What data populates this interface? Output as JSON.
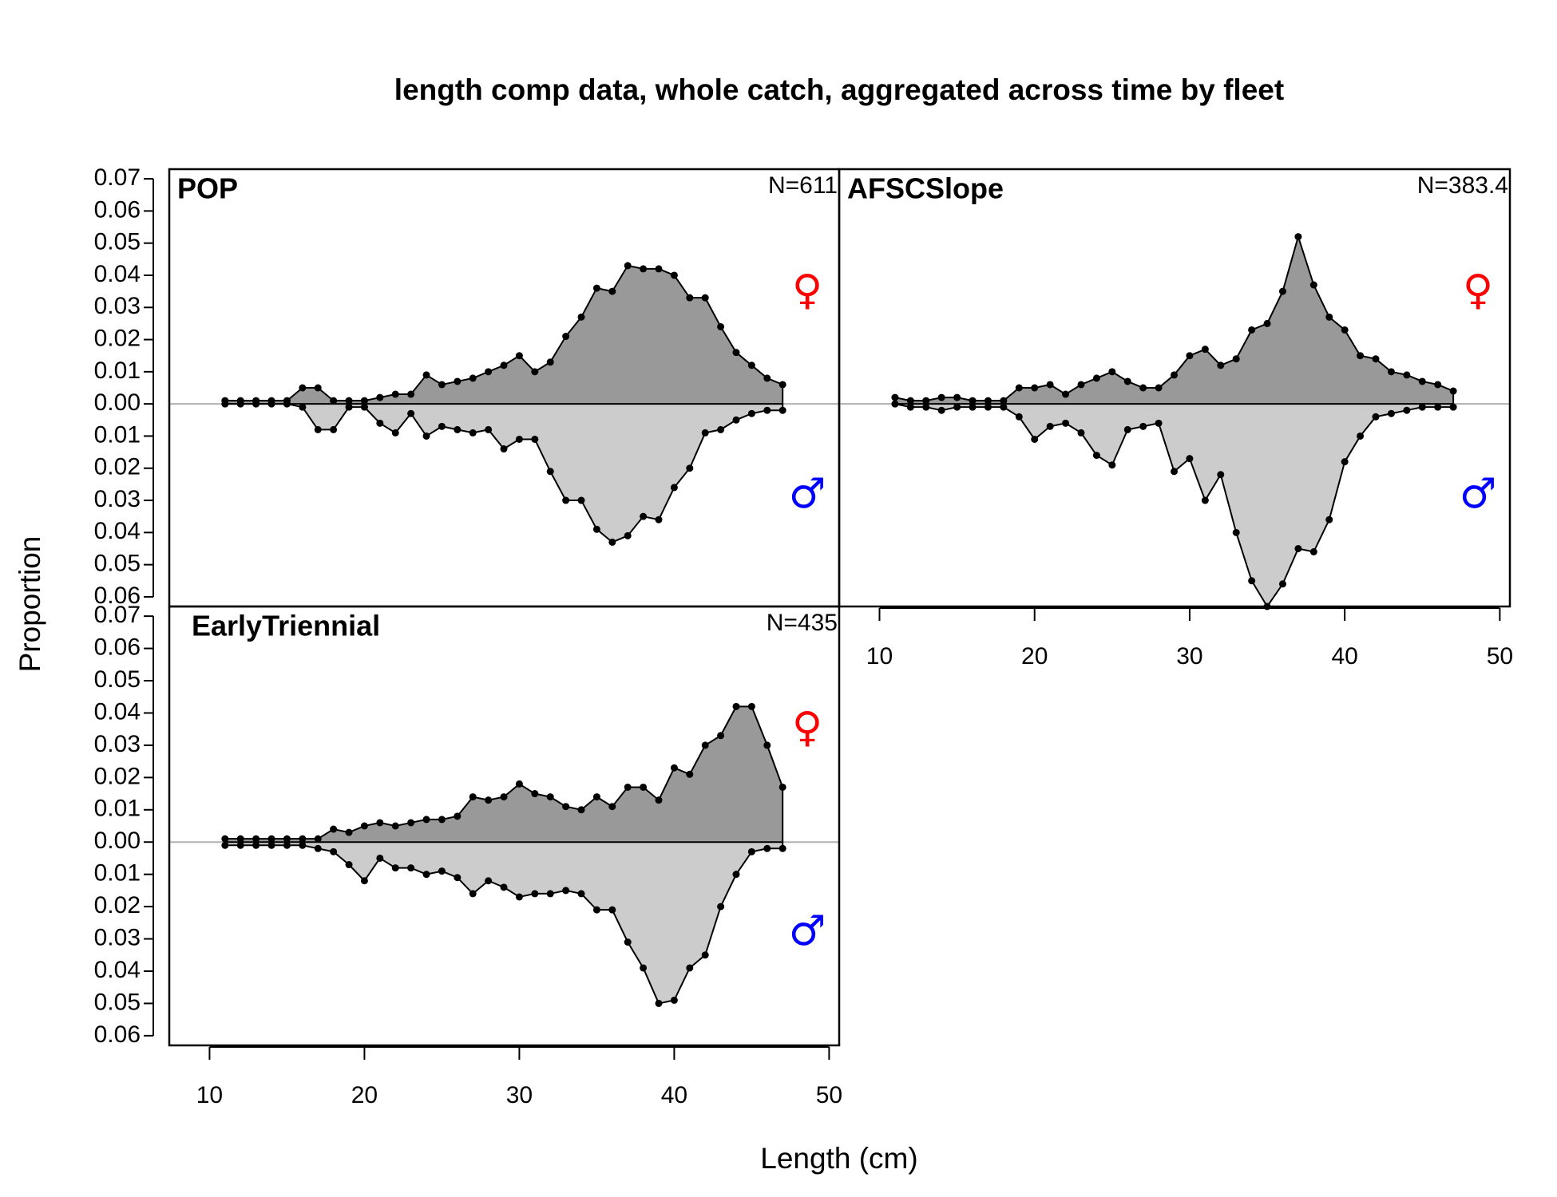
{
  "chart_data": {
    "type": "area",
    "title": "length comp data, whole catch, aggregated across time by fleet",
    "x_label": "Length (cm)",
    "y_label": "Proportion",
    "x": [
      11,
      12,
      13,
      14,
      15,
      16,
      17,
      18,
      19,
      20,
      21,
      22,
      23,
      24,
      25,
      26,
      27,
      28,
      29,
      30,
      31,
      32,
      33,
      34,
      35,
      36,
      37,
      38,
      39,
      40,
      41,
      42,
      43,
      44,
      45,
      46,
      47
    ],
    "xlim": [
      7.4,
      50.65
    ],
    "xticks": [
      10,
      20,
      30,
      40,
      50
    ],
    "ylim": [
      -0.063,
      0.073
    ],
    "yticks": [
      0.07,
      0.06,
      0.05,
      0.04,
      0.03,
      0.02,
      0.01,
      {
        "value": 0,
        "label": "0.00"
      },
      {
        "value": -0.01,
        "label": "0.01"
      },
      {
        "value": -0.02,
        "label": "0.02"
      },
      {
        "value": -0.03,
        "label": "0.03"
      },
      {
        "value": -0.04,
        "label": "0.04"
      },
      {
        "value": -0.05,
        "label": "0.05"
      },
      {
        "value": -0.06,
        "label": "0.06"
      }
    ],
    "grid": false,
    "panels": [
      {
        "name": "POP",
        "n_label": "N=611",
        "y_axis": true,
        "x_axis": false,
        "series": [
          {
            "name": "♀",
            "color": "#ff0000",
            "fill": "#999999",
            "values": [
              0.001,
              0.001,
              0.001,
              0.001,
              0.001,
              0.005,
              0.005,
              0.001,
              0.001,
              0.001,
              0.002,
              0.003,
              0.003,
              0.009,
              0.006,
              0.007,
              0.008,
              0.01,
              0.012,
              0.015,
              0.01,
              0.013,
              0.021,
              0.027,
              0.036,
              0.035,
              0.043,
              0.042,
              0.042,
              0.04,
              0.033,
              0.033,
              0.024,
              0.016,
              0.012,
              0.008,
              0.006
            ]
          },
          {
            "name": "♂",
            "color": "#0000ff",
            "fill": "#cccccc",
            "values": [
              0,
              0,
              0,
              0,
              0,
              -0.001,
              -0.008,
              -0.008,
              -0.001,
              -0.001,
              -0.006,
              -0.009,
              -0.003,
              -0.01,
              -0.007,
              -0.008,
              -0.009,
              -0.008,
              -0.014,
              -0.011,
              -0.011,
              -0.021,
              -0.03,
              -0.03,
              -0.039,
              -0.043,
              -0.041,
              -0.035,
              -0.036,
              -0.026,
              -0.02,
              -0.009,
              -0.008,
              -0.005,
              -0.003,
              -0.002,
              -0.002
            ]
          }
        ]
      },
      {
        "name": "AFSCSlope",
        "n_label": "N=383.4",
        "y_axis": false,
        "x_axis": true,
        "series": [
          {
            "name": "♀",
            "color": "#ff0000",
            "fill": "#999999",
            "values": [
              0.002,
              0.001,
              0.001,
              0.002,
              0.002,
              0.001,
              0.001,
              0.001,
              0.005,
              0.005,
              0.006,
              0.003,
              0.006,
              0.008,
              0.01,
              0.007,
              0.005,
              0.005,
              0.009,
              0.015,
              0.017,
              0.012,
              0.014,
              0.023,
              0.025,
              0.035,
              0.052,
              0.037,
              0.027,
              0.023,
              0.015,
              0.014,
              0.01,
              0.009,
              0.007,
              0.006,
              0.004
            ]
          },
          {
            "name": "♂",
            "color": "#0000ff",
            "fill": "#cccccc",
            "values": [
              0,
              -0.001,
              -0.001,
              -0.002,
              -0.001,
              -0.001,
              -0.001,
              -0.001,
              -0.004,
              -0.011,
              -0.007,
              -0.006,
              -0.009,
              -0.016,
              -0.019,
              -0.008,
              -0.007,
              -0.006,
              -0.021,
              -0.017,
              -0.03,
              -0.022,
              -0.04,
              -0.055,
              -0.063,
              -0.056,
              -0.045,
              -0.046,
              -0.036,
              -0.018,
              -0.01,
              -0.004,
              -0.003,
              -0.002,
              -0.001,
              -0.001,
              -0.001
            ]
          }
        ]
      },
      {
        "name": "EarlyTriennial",
        "n_label": "N=435",
        "y_axis": true,
        "x_axis": true,
        "series": [
          {
            "name": "♀",
            "color": "#ff0000",
            "fill": "#999999",
            "values": [
              0.001,
              0.001,
              0.001,
              0.001,
              0.001,
              0.001,
              0.001,
              0.004,
              0.003,
              0.005,
              0.006,
              0.005,
              0.006,
              0.007,
              0.007,
              0.008,
              0.014,
              0.013,
              0.014,
              0.018,
              0.015,
              0.014,
              0.011,
              0.01,
              0.014,
              0.011,
              0.017,
              0.017,
              0.013,
              0.023,
              0.021,
              0.03,
              0.033,
              0.042,
              0.042,
              0.03,
              0.017
            ]
          },
          {
            "name": "♂",
            "color": "#0000ff",
            "fill": "#cccccc",
            "values": [
              -0.001,
              -0.001,
              -0.001,
              -0.001,
              -0.001,
              -0.001,
              -0.002,
              -0.003,
              -0.007,
              -0.012,
              -0.005,
              -0.008,
              -0.008,
              -0.01,
              -0.009,
              -0.011,
              -0.016,
              -0.012,
              -0.014,
              -0.017,
              -0.016,
              -0.016,
              -0.015,
              -0.016,
              -0.021,
              -0.021,
              -0.031,
              -0.039,
              -0.05,
              -0.049,
              -0.039,
              -0.035,
              -0.02,
              -0.01,
              -0.003,
              -0.002,
              -0.002
            ]
          }
        ]
      }
    ]
  }
}
